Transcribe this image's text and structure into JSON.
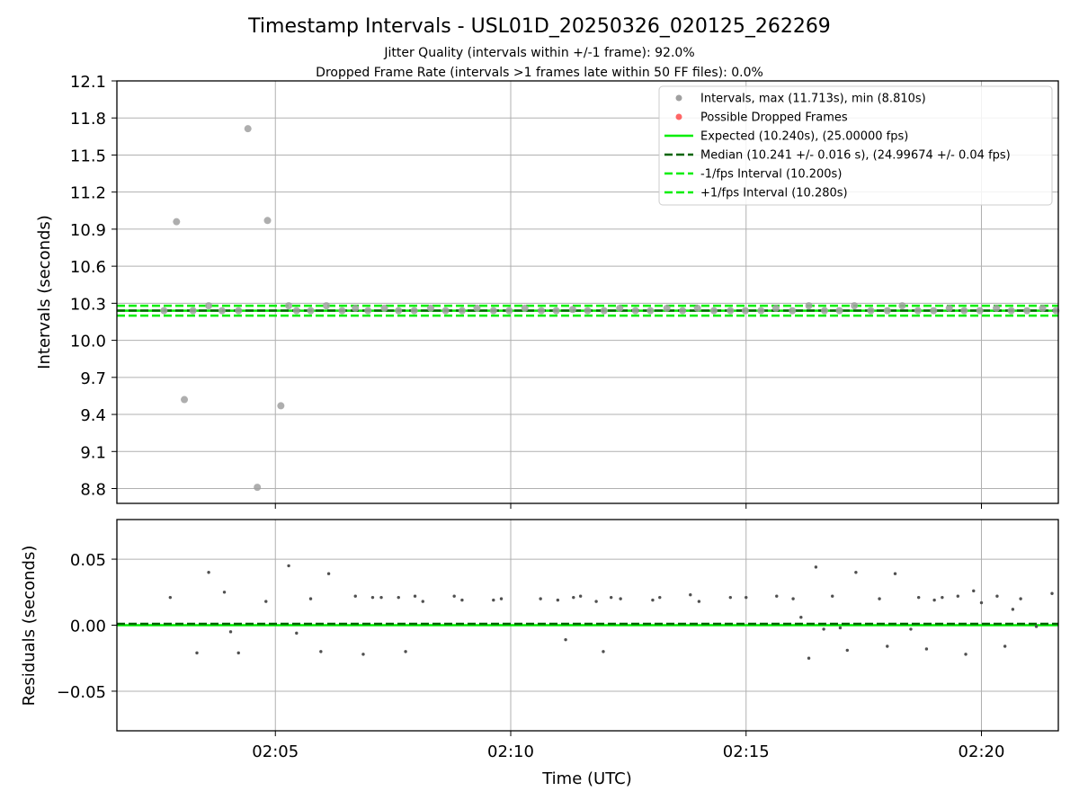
{
  "header": {
    "title": "Timestamp Intervals - USL01D_20250326_020125_262269",
    "subtitle_1": "Jitter Quality (intervals within +/-1 frame): 92.0%",
    "subtitle_2": "Dropped Frame Rate (intervals >1 frames late within 50 FF files): 0.0%"
  },
  "colors": {
    "intervals": "#a0a0a0",
    "dropped": "#ff4040",
    "expected": "#00ee00",
    "median": "#006400",
    "fps_band": "#00ee00",
    "residual_points": "#505050",
    "grid": "#b0b0b0"
  },
  "chart_data": [
    {
      "type": "scatter",
      "ylabel": "Intervals (seconds)",
      "xlabel": "",
      "xlim": [
        "02:01:38",
        "02:21:38"
      ],
      "ylim": [
        8.68,
        12.1
      ],
      "yticks": [
        "12.1",
        "11.8",
        "11.5",
        "11.2",
        "10.9",
        "10.6",
        "10.3",
        "10.0",
        "9.7",
        "9.4",
        "9.1",
        "8.8"
      ],
      "grid": true,
      "legend_position": "top-right",
      "legend": [
        {
          "label": "Intervals, max (11.713s), min (8.810s)",
          "style": "point-grey"
        },
        {
          "label": "Possible Dropped Frames",
          "style": "point-red"
        },
        {
          "label": "Expected (10.240s), (25.00000 fps)",
          "style": "line-solid-green"
        },
        {
          "label": "Median (10.241 +/- 0.016 s), (24.99674 +/- 0.04 fps)",
          "style": "line-dashed-darkgreen"
        },
        {
          "label": "-1/fps Interval (10.200s)",
          "style": "line-dashed-green"
        },
        {
          "label": "+1/fps Interval (10.280s)",
          "style": "line-dashed-green"
        }
      ],
      "reference_lines": {
        "expected": 10.24,
        "median": 10.241,
        "minus_fps": 10.2,
        "plus_fps": 10.28
      },
      "series": [
        {
          "name": "Intervals, max (11.713s), min (8.810s)",
          "points": [
            [
              "02:02:38",
              10.24
            ],
            [
              "02:02:54",
              10.96
            ],
            [
              "02:03:04",
              9.52
            ],
            [
              "02:03:15",
              10.24
            ],
            [
              "02:03:35",
              10.28
            ],
            [
              "02:03:52",
              10.24
            ],
            [
              "02:04:13",
              10.24
            ],
            [
              "02:04:25",
              11.713
            ],
            [
              "02:04:37",
              8.81
            ],
            [
              "02:04:50",
              10.97
            ],
            [
              "02:05:07",
              9.47
            ],
            [
              "02:05:17",
              10.28
            ],
            [
              "02:05:27",
              10.24
            ],
            [
              "02:05:45",
              10.24
            ],
            [
              "02:06:05",
              10.28
            ],
            [
              "02:06:25",
              10.24
            ],
            [
              "02:06:42",
              10.26
            ],
            [
              "02:06:58",
              10.24
            ],
            [
              "02:07:19",
              10.26
            ],
            [
              "02:07:37",
              10.24
            ],
            [
              "02:07:57",
              10.24
            ],
            [
              "02:08:18",
              10.26
            ],
            [
              "02:08:37",
              10.24
            ],
            [
              "02:08:58",
              10.24
            ],
            [
              "02:09:17",
              10.26
            ],
            [
              "02:09:38",
              10.24
            ],
            [
              "02:09:58",
              10.24
            ],
            [
              "02:10:18",
              10.26
            ],
            [
              "02:10:39",
              10.24
            ],
            [
              "02:10:58",
              10.24
            ],
            [
              "02:11:19",
              10.25
            ],
            [
              "02:11:38",
              10.24
            ],
            [
              "02:11:59",
              10.24
            ],
            [
              "02:12:19",
              10.26
            ],
            [
              "02:12:39",
              10.24
            ],
            [
              "02:12:58",
              10.24
            ],
            [
              "02:13:19",
              10.26
            ],
            [
              "02:13:39",
              10.24
            ],
            [
              "02:13:58",
              10.26
            ],
            [
              "02:14:19",
              10.24
            ],
            [
              "02:14:40",
              10.24
            ],
            [
              "02:14:59",
              10.24
            ],
            [
              "02:15:19",
              10.24
            ],
            [
              "02:15:38",
              10.26
            ],
            [
              "02:15:59",
              10.24
            ],
            [
              "02:16:20",
              10.28
            ],
            [
              "02:16:40",
              10.24
            ],
            [
              "02:16:59",
              10.24
            ],
            [
              "02:17:18",
              10.28
            ],
            [
              "02:17:39",
              10.24
            ],
            [
              "02:18:00",
              10.24
            ],
            [
              "02:18:19",
              10.28
            ],
            [
              "02:18:39",
              10.24
            ],
            [
              "02:18:59",
              10.24
            ],
            [
              "02:19:19",
              10.26
            ],
            [
              "02:19:38",
              10.24
            ],
            [
              "02:19:58",
              10.24
            ],
            [
              "02:20:19",
              10.26
            ],
            [
              "02:20:38",
              10.24
            ],
            [
              "02:20:58",
              10.24
            ],
            [
              "02:21:18",
              10.26
            ],
            [
              "02:21:35",
              10.24
            ]
          ]
        },
        {
          "name": "Possible Dropped Frames",
          "points": []
        }
      ]
    },
    {
      "type": "scatter",
      "ylabel": "Residuals (seconds)",
      "xlabel": "Time (UTC)",
      "xlim": [
        "02:01:38",
        "02:21:38"
      ],
      "ylim": [
        -0.08,
        0.08
      ],
      "yticks": [
        "0.05",
        "0.00",
        "−0.05"
      ],
      "xticks": [
        "02:05",
        "02:10",
        "02:15",
        "02:20"
      ],
      "grid": true,
      "reference_lines": {
        "expected": 0.0,
        "median": 0.001
      },
      "series": [
        {
          "name": "Residuals",
          "points": [
            [
              "02:02:46",
              0.021
            ],
            [
              "02:03:20",
              -0.021
            ],
            [
              "02:03:35",
              0.04
            ],
            [
              "02:03:55",
              0.025
            ],
            [
              "02:04:03",
              -0.005
            ],
            [
              "02:04:13",
              -0.021
            ],
            [
              "02:04:48",
              0.018
            ],
            [
              "02:05:17",
              0.045
            ],
            [
              "02:05:27",
              -0.006
            ],
            [
              "02:05:45",
              0.02
            ],
            [
              "02:05:58",
              -0.02
            ],
            [
              "02:06:08",
              0.039
            ],
            [
              "02:06:42",
              0.022
            ],
            [
              "02:06:52",
              -0.022
            ],
            [
              "02:07:04",
              0.021
            ],
            [
              "02:07:15",
              0.021
            ],
            [
              "02:07:37",
              0.021
            ],
            [
              "02:07:46",
              -0.02
            ],
            [
              "02:07:58",
              0.022
            ],
            [
              "02:08:08",
              0.018
            ],
            [
              "02:08:48",
              0.022
            ],
            [
              "02:08:58",
              0.019
            ],
            [
              "02:09:38",
              0.019
            ],
            [
              "02:09:48",
              0.02
            ],
            [
              "02:10:38",
              0.02
            ],
            [
              "02:11:00",
              0.019
            ],
            [
              "02:11:10",
              -0.011
            ],
            [
              "02:11:20",
              0.021
            ],
            [
              "02:11:29",
              0.022
            ],
            [
              "02:11:49",
              0.018
            ],
            [
              "02:11:58",
              -0.02
            ],
            [
              "02:12:08",
              0.021
            ],
            [
              "02:12:20",
              0.02
            ],
            [
              "02:13:01",
              0.019
            ],
            [
              "02:13:10",
              0.021
            ],
            [
              "02:13:49",
              0.023
            ],
            [
              "02:14:00",
              0.018
            ],
            [
              "02:14:40",
              0.021
            ],
            [
              "02:15:00",
              0.021
            ],
            [
              "02:15:39",
              0.022
            ],
            [
              "02:16:00",
              0.02
            ],
            [
              "02:16:10",
              0.006
            ],
            [
              "02:16:20",
              -0.025
            ],
            [
              "02:16:29",
              0.044
            ],
            [
              "02:16:39",
              -0.003
            ],
            [
              "02:16:50",
              0.022
            ],
            [
              "02:17:00",
              -0.002
            ],
            [
              "02:17:09",
              -0.019
            ],
            [
              "02:17:20",
              0.04
            ],
            [
              "02:17:50",
              0.02
            ],
            [
              "02:18:00",
              -0.016
            ],
            [
              "02:18:10",
              0.039
            ],
            [
              "02:18:30",
              -0.003
            ],
            [
              "02:18:40",
              0.021
            ],
            [
              "02:18:50",
              -0.018
            ],
            [
              "02:19:00",
              0.019
            ],
            [
              "02:19:10",
              0.021
            ],
            [
              "02:19:30",
              0.022
            ],
            [
              "02:19:40",
              -0.022
            ],
            [
              "02:19:50",
              0.026
            ],
            [
              "02:20:00",
              0.017
            ],
            [
              "02:20:20",
              0.022
            ],
            [
              "02:20:30",
              -0.016
            ],
            [
              "02:20:40",
              0.012
            ],
            [
              "02:20:50",
              0.02
            ],
            [
              "02:21:10",
              -0.001
            ],
            [
              "02:21:30",
              0.024
            ]
          ]
        }
      ]
    }
  ]
}
